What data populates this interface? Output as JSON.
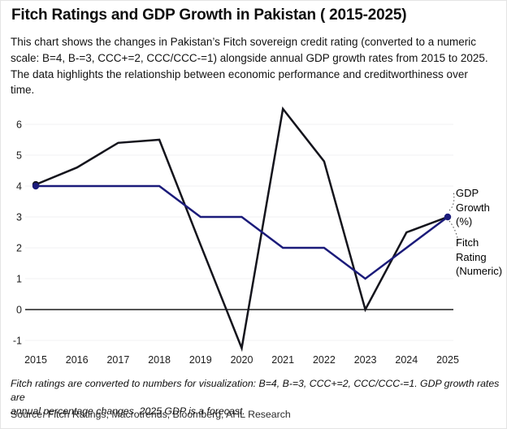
{
  "title": "Fitch Ratings and GDP Growth in Pakistan ( 2015-2025)",
  "description_lines": [
    "This chart shows the changes in Pakistan’s Fitch sovereign credit rating (converted to a numeric",
    "scale: B=4, B-=3, CCC+=2, CCC/CCC-=1) alongside annual GDP growth rates from 2015 to 2025.",
    "The data highlights the relationship between economic performance and creditworthiness over",
    "time."
  ],
  "chart_data": {
    "type": "line",
    "x": [
      2015,
      2016,
      2017,
      2018,
      2019,
      2020,
      2021,
      2022,
      2023,
      2024,
      2025
    ],
    "series": [
      {
        "name": "GDP Growth (%)",
        "color": "#14141c",
        "values": [
          4.05,
          4.6,
          5.4,
          5.5,
          2.1,
          -1.25,
          6.5,
          4.8,
          0,
          2.5,
          3.0
        ],
        "markers": [
          0
        ]
      },
      {
        "name": "Fitch Rating (Numeric)",
        "color": "#1b1b7a",
        "values": [
          4,
          4,
          4,
          4,
          3,
          3,
          2,
          2,
          1,
          2,
          3
        ],
        "markers": [
          0,
          10
        ]
      }
    ],
    "yticks": [
      6,
      5,
      4,
      3,
      2,
      1,
      0,
      -1
    ],
    "ylim": [
      -1.4,
      6.6
    ],
    "grid": "faint horizontal gridlines, dark zero baseline",
    "legend_position": "right edge annotations with dotted leader lines",
    "annotations": [
      {
        "text": "GDP Growth (%)"
      },
      {
        "text": "Fitch Rating (Numeric)"
      }
    ]
  },
  "footnote_lines": [
    "Fitch ratings are converted to numbers for visualization: B=4, B-=3, CCC+=2, CCC/CCC-=1. GDP growth rates are",
    "annual percentage changes. 2025 GDP is a forecast."
  ],
  "source": "Source: Fitch Ratings, Macrotrends, Bloomberg, AHL Research"
}
